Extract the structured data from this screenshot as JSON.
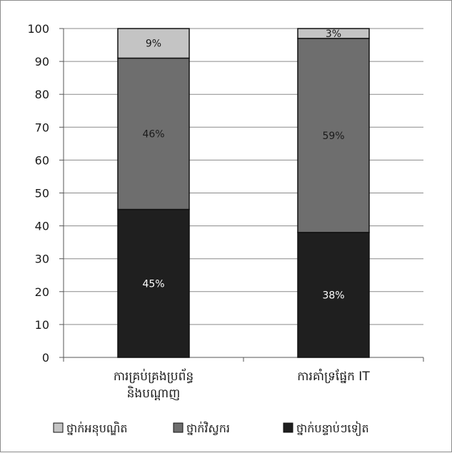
{
  "chart_data": {
    "type": "bar",
    "stacked": true,
    "categories": [
      "ការគ្រប់គ្រងប្រព័ន្ធ និងបណ្ដាញ",
      "ការគាំទ្រផ្នែក IT"
    ],
    "category_lines": [
      [
        "ការគ្រប់គ្រងប្រព័ន្ធ",
        "និងបណ្ដាញ"
      ],
      [
        "ការគាំទ្រផ្នែក IT"
      ]
    ],
    "series": [
      {
        "name": "ថ្នាក់បន្ទាប់ៗទៀត",
        "values": [
          45,
          38
        ],
        "labels": [
          "45%",
          "38%"
        ],
        "color": "#1f1f1f",
        "label_color": "#ffffff"
      },
      {
        "name": "ថ្នាក់វិស្វករ",
        "values": [
          46,
          59
        ],
        "labels": [
          "46%",
          "59%"
        ],
        "color": "#6e6e6e",
        "label_color": "#1a1a1a"
      },
      {
        "name": "ថ្នាក់អនុបណ្ឌិត",
        "values": [
          9,
          3
        ],
        "labels": [
          "9%",
          "3%"
        ],
        "color": "#c4c4c4",
        "label_color": "#1a1a1a"
      }
    ],
    "legend_order": [
      2,
      1,
      0
    ],
    "title": "",
    "xlabel": "",
    "ylabel": "",
    "ylim": [
      0,
      100
    ],
    "yticks": [
      0,
      10,
      20,
      30,
      40,
      50,
      60,
      70,
      80,
      90,
      100
    ],
    "grid": true,
    "legend_position": "bottom"
  }
}
